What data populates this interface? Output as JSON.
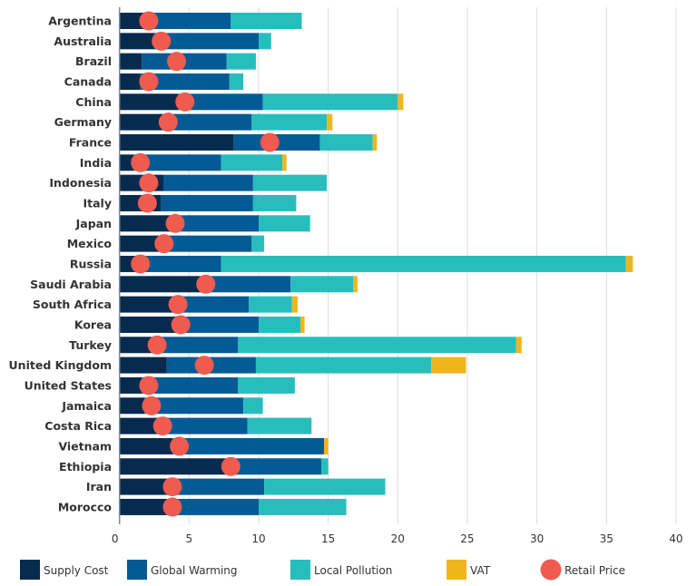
{
  "chart_data": {
    "type": "bar",
    "orientation": "horizontal",
    "stacked": true,
    "title": "",
    "xlabel": "",
    "ylabel": "",
    "xlim": [
      0,
      40
    ],
    "xticks": [
      0,
      5,
      10,
      15,
      20,
      25,
      30,
      35,
      40
    ],
    "grid": true,
    "legend_position": "bottom",
    "categories": [
      "Argentina",
      "Australia",
      "Brazil",
      "Canada",
      "China",
      "Germany",
      "France",
      "India",
      "Indonesia",
      "Italy",
      "Japan",
      "Mexico",
      "Russia",
      "Saudi Arabia",
      "South Africa",
      "Korea",
      "Turkey",
      "United Kingdom",
      "United States",
      "Jamaica",
      "Costa Rica",
      "Vietnam",
      "Ethiopia",
      "Iran",
      "Morocco"
    ],
    "series": [
      {
        "name": "Supply Cost",
        "color": "#072b4f",
        "values": [
          2.5,
          2.5,
          1.6,
          1.5,
          4.2,
          3.2,
          8.2,
          1.0,
          3.2,
          3.0,
          3.8,
          2.9,
          1.2,
          5.8,
          3.9,
          4.0,
          2.3,
          3.4,
          1.6,
          1.8,
          2.7,
          3.8,
          7.7,
          3.6,
          3.4
        ]
      },
      {
        "name": "Global Warming",
        "color": "#045a95",
        "values": [
          5.5,
          7.5,
          6.1,
          6.4,
          6.1,
          6.3,
          6.2,
          6.3,
          6.4,
          6.6,
          6.2,
          6.6,
          6.1,
          6.5,
          5.4,
          6.0,
          6.2,
          6.4,
          6.9,
          7.1,
          6.5,
          10.9,
          6.8,
          6.8,
          6.6
        ]
      },
      {
        "name": "Local Pollution",
        "color": "#28bdbd",
        "values": [
          5.1,
          0.9,
          2.1,
          1.0,
          9.7,
          5.4,
          3.8,
          4.4,
          5.3,
          3.1,
          3.7,
          0.9,
          29.1,
          4.5,
          3.1,
          3.0,
          20.0,
          12.6,
          4.1,
          1.4,
          4.6,
          0,
          0.5,
          8.7,
          6.3
        ]
      },
      {
        "name": "VAT",
        "color": "#f1b51c",
        "values": [
          0,
          0,
          0,
          0,
          0.4,
          0.4,
          0.3,
          0.3,
          0,
          0,
          0,
          0,
          0.5,
          0.3,
          0.4,
          0.3,
          0.4,
          2.5,
          0,
          0,
          0,
          0.3,
          0,
          0,
          0
        ]
      }
    ],
    "markers": {
      "name": "Retail Price",
      "color": "#ef5b4f",
      "values": [
        2.1,
        3.0,
        4.1,
        2.1,
        4.7,
        3.5,
        10.8,
        1.5,
        2.1,
        2.0,
        4.0,
        3.2,
        1.5,
        6.2,
        4.2,
        4.4,
        2.7,
        6.1,
        2.1,
        2.3,
        3.1,
        4.3,
        8.0,
        3.8,
        3.8
      ]
    }
  }
}
